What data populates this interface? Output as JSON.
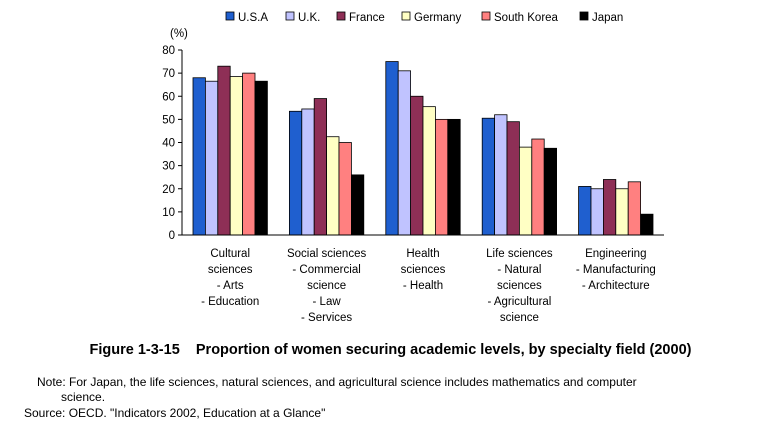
{
  "chart_data": {
    "type": "bar",
    "unit_label": "(%)",
    "ylim": [
      0,
      80
    ],
    "yticks": [
      0,
      10,
      20,
      30,
      40,
      50,
      60,
      70,
      80
    ],
    "categories": [
      [
        "Cultural",
        "sciences",
        "- Arts",
        "- Education"
      ],
      [
        "Social sciences",
        "- Commercial",
        "science",
        "- Law",
        "- Services"
      ],
      [
        "Health",
        "sciences",
        "- Health"
      ],
      [
        "Life sciences",
        "- Natural",
        "sciences",
        "- Agricultural",
        "science"
      ],
      [
        "Engineering",
        "- Manufacturing",
        "- Architecture"
      ]
    ],
    "series": [
      {
        "name": "U.S.A",
        "color": "#1f5fcf",
        "values": [
          68,
          53.5,
          75,
          50.5,
          21
        ]
      },
      {
        "name": "U.K.",
        "color": "#c0c3ff",
        "values": [
          66.5,
          54.5,
          71,
          52,
          20
        ]
      },
      {
        "name": "France",
        "color": "#8e2f56",
        "values": [
          73,
          59,
          60,
          49,
          24
        ]
      },
      {
        "name": "Germany",
        "color": "#ffffc4",
        "values": [
          68.5,
          42.5,
          55.5,
          38,
          20
        ]
      },
      {
        "name": "South Korea",
        "color": "#ff8080",
        "values": [
          70,
          40,
          50,
          41.5,
          23
        ]
      },
      {
        "name": "Japan",
        "color": "#000000",
        "values": [
          66.5,
          26,
          50,
          37.5,
          9
        ]
      }
    ]
  },
  "caption": "Figure 1-3-15    Proportion of women securing academic levels, by specialty field (2000)",
  "note_line1": "Note: For Japan, the life sciences, natural sciences, and agricultural science includes mathematics and computer",
  "note_line2": "science.",
  "source": "Source: OECD. \"Indicators 2002, Education at a Glance\""
}
